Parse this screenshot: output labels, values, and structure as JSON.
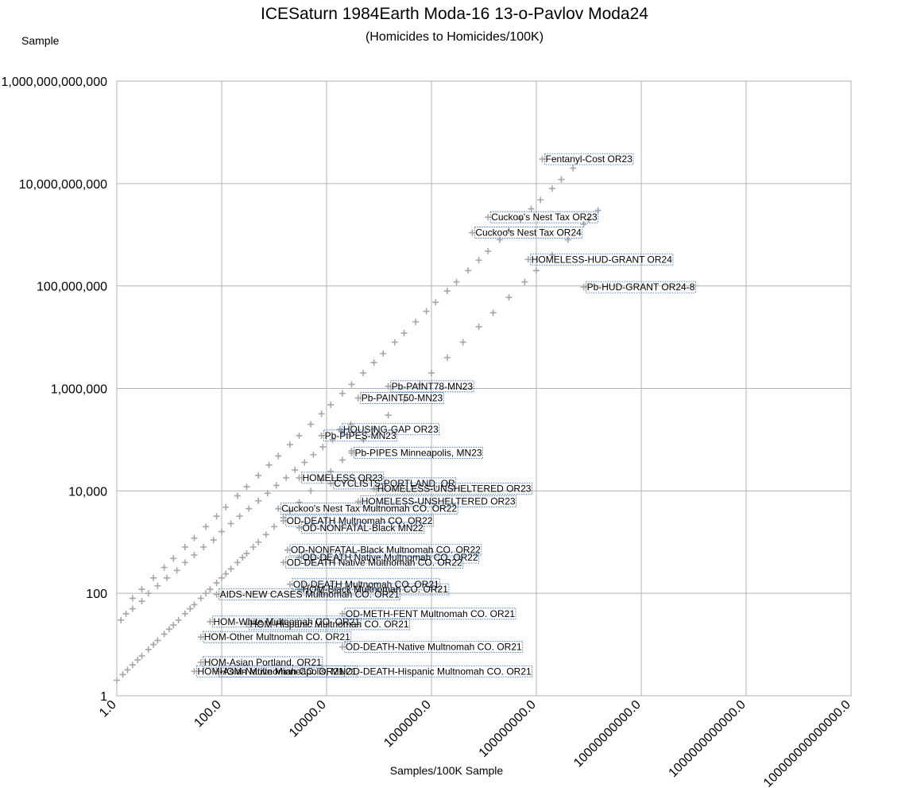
{
  "chart_data": {
    "type": "scatter",
    "title": "ICESaturn 1984Earth Moda-16 13-o-Pavlov Moda24",
    "subtitle": "(Homicides to Homicides/100K)",
    "xlabel": "Samples/100K Sample",
    "ylabel": "Sample",
    "x_scale": "log",
    "y_scale": "log",
    "xlim": [
      1,
      100000000000000
    ],
    "ylim": [
      1,
      1000000000000
    ],
    "grid": true,
    "marker": "plus",
    "marker_color": "#a6a6a6",
    "x_tick_labels": [
      "1.0",
      "100.0",
      "10000.0",
      "1000000.0",
      "100000000.0",
      "10000000000.0",
      "1000000000000.0",
      "100000000000000.0"
    ],
    "y_tick_labels": [
      "1",
      "100",
      "10,000",
      "1,000,000",
      "100,000,000",
      "10,000,000,000",
      "1,000,000,000,000"
    ],
    "labeled_points": [
      {
        "label": "Fentanyl-Cost OR23",
        "x": 130000000,
        "y": 30000000000
      },
      {
        "label": "Cuckoo's Nest Tax OR23",
        "x": 12000000,
        "y": 2200000000
      },
      {
        "label": "Cuckoo's Nest Tax OR24",
        "x": 6000000,
        "y": 1100000000
      },
      {
        "label": "HOMELESS-HUD-GRANT OR24",
        "x": 70000000,
        "y": 330000000
      },
      {
        "label": "Pb-HUD-GRANT OR24-8",
        "x": 800000000,
        "y": 95000000
      },
      {
        "label": "Pb-PAINT78-MN23",
        "x": 150000,
        "y": 1100000
      },
      {
        "label": "Pb-PAINT50-MN23",
        "x": 40000,
        "y": 650000
      },
      {
        "label": "HOUSING-GAP OR23",
        "x": 18000,
        "y": 160000
      },
      {
        "label": "Pb-PIPES-MN23",
        "x": 8000,
        "y": 120000
      },
      {
        "label": "Pb-PIPES Minneapolis, MN23",
        "x": 30000,
        "y": 55000
      },
      {
        "label": "HOMELESS OR23",
        "x": 3000,
        "y": 18000
      },
      {
        "label": "CYCLISTS-PORTLAND, OR",
        "x": 12000,
        "y": 14000
      },
      {
        "label": "HOMELESS-UNSHELTERED OR23",
        "x": 80000,
        "y": 11000
      },
      {
        "label": "HOMELESS-UNSHELTERED OR23",
        "x": 40000,
        "y": 6200
      },
      {
        "label": "Cuckoo's Nest Tax Multnomah CO. OR22",
        "x": 1200,
        "y": 4500
      },
      {
        "label": "OD-DEATH Multnomah CO. OR22",
        "x": 1500,
        "y": 2600
      },
      {
        "label": "OD-NONFATAL-Black MN22",
        "x": 3000,
        "y": 1900
      },
      {
        "label": "OD-NONFATAL-Black Multnomah CO. OR22",
        "x": 1800,
        "y": 700
      },
      {
        "label": "OD-DEATH Native Multnomah CO. OR22",
        "x": 3000,
        "y": 500
      },
      {
        "label": "OD-DEATH Native Multnomah CO. OR22",
        "x": 1500,
        "y": 400
      },
      {
        "label": "OD-DEATH Multnomah CO. OR21",
        "x": 2000,
        "y": 150
      },
      {
        "label": "AIDS-NEW CASES Multnomah CO. OR21",
        "x": 80,
        "y": 95
      },
      {
        "label": "HOM-Black Multnomah CO. OR21",
        "x": 3000,
        "y": 120
      },
      {
        "label": "OD-METH-FENT Multnomah CO. OR21",
        "x": 20000,
        "y": 40
      },
      {
        "label": "HOM-White Multnomah CO. OR21",
        "x": 60,
        "y": 28
      },
      {
        "label": "HOM-Hispanic Multnomah CO. OR21",
        "x": 300,
        "y": 25
      },
      {
        "label": "OD-DEATH-Native Multnomah CO. OR21",
        "x": 20000,
        "y": 9
      },
      {
        "label": "HOM-Other Multnomah CO. OR21",
        "x": 40,
        "y": 14
      },
      {
        "label": "OD-DEATH-Hispanic Multnomah CO. OR21",
        "x": 20000,
        "y": 3
      },
      {
        "label": "HOM-Asian Portland, OR21",
        "x": 40,
        "y": 4.5
      },
      {
        "label": "HOM-Asian Multnomah CO. OR21",
        "x": 30,
        "y": 3
      },
      {
        "label": "HOM-Native Minneapolis, MN21",
        "x": 80,
        "y": 3
      }
    ],
    "series": [
      {
        "x": [
          1,
          1.3,
          1.6,
          2,
          2.5,
          3,
          4,
          5,
          6,
          8,
          10,
          12,
          15,
          20,
          25,
          30,
          40,
          50,
          60,
          80,
          100,
          120,
          150,
          200,
          250,
          300,
          400,
          500,
          700,
          1000,
          1500,
          2000,
          3000,
          5000,
          8000,
          12000,
          20000,
          30000,
          50000,
          80000,
          150000,
          300000,
          600000,
          1000000,
          2000000,
          4000000,
          8000000,
          15000000,
          30000000,
          60000000,
          100000000,
          200000000,
          400000000,
          800000000,
          1500000000,
          1000000000
        ],
        "y": [
          2,
          2.6,
          3.2,
          4,
          5,
          6,
          8,
          10,
          12,
          16,
          20,
          24,
          30,
          40,
          50,
          60,
          80,
          100,
          120,
          160,
          200,
          240,
          300,
          400,
          500,
          600,
          800,
          1000,
          1400,
          2000,
          3000,
          4000,
          6000,
          10000,
          16000,
          24000,
          40000,
          60000,
          100000,
          160000,
          300000,
          600000,
          1200000,
          2000000,
          4000000,
          8000000,
          16000000,
          30000000,
          60000000,
          120000000,
          200000000,
          400000000,
          800000000,
          1600000000,
          3000000000,
          2000000000
        ]
      },
      {
        "x": [
          2,
          3,
          5,
          8,
          12,
          20,
          30,
          50,
          80,
          120,
          200,
          300,
          500,
          800,
          1200,
          2000,
          3000,
          5000,
          8000,
          12000,
          20000,
          30000,
          50000,
          80000,
          120000,
          200000,
          300000,
          500000,
          800000,
          1200000,
          2000000,
          3000000,
          5000000,
          8000000,
          12000000,
          20000000,
          30000000,
          50000000,
          80000000,
          120000000,
          200000000,
          300000000,
          500000000
        ],
        "y": [
          80,
          120,
          200,
          320,
          480,
          800,
          1200,
          2000,
          3200,
          4800,
          8000,
          12000,
          20000,
          32000,
          48000,
          80000,
          120000,
          200000,
          320000,
          480000,
          800000,
          1200000,
          2000000,
          3200000,
          4800000,
          8000000,
          12000000,
          20000000,
          32000000,
          48000000,
          80000000,
          120000000,
          200000000,
          320000000,
          480000000,
          800000000,
          1200000000,
          2000000000,
          3200000000,
          4800000000,
          8000000000,
          12000000000,
          20000000000
        ]
      },
      {
        "x": [
          1.2,
          1.5,
          2,
          3,
          4,
          6,
          9,
          14,
          20,
          30,
          45,
          70,
          100,
          150,
          220,
          330,
          500,
          750,
          1100,
          1700,
          2500,
          3800,
          5600,
          8500,
          13000,
          19000,
          29000
        ],
        "y": [
          30,
          40,
          50,
          70,
          100,
          140,
          200,
          280,
          400,
          560,
          800,
          1100,
          1600,
          2300,
          3200,
          4500,
          6400,
          9000,
          12800,
          18000,
          25600,
          36000,
          51000,
          72000,
          100000,
          145000,
          200000
        ]
      }
    ]
  }
}
